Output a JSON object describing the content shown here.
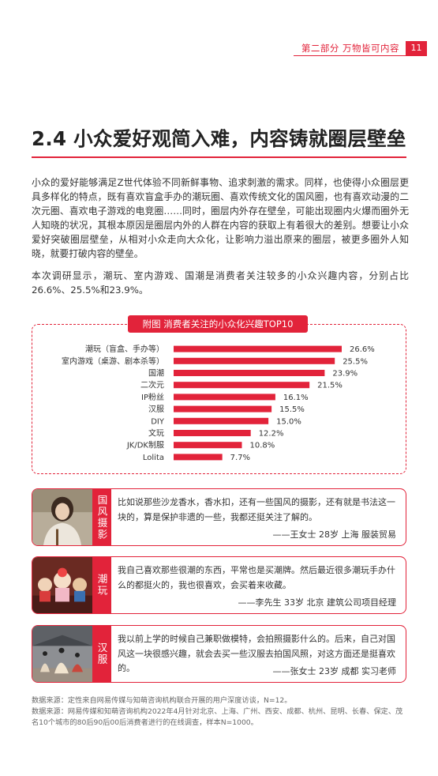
{
  "header": {
    "section": "第二部分  万物皆可内容",
    "page_number": "11"
  },
  "title": "2.4  小众爱好观简入难，内容铸就圈层壁垒",
  "paragraphs": [
    "小众的爱好能够满足Z世代体验不同新鲜事物、追求刺激的需求。同样，也使得小众圈层更具多样化的特点，既有喜欢盲盒手办的潮玩圈、喜欢传统文化的国风圈，也有喜欢动漫的二次元圈、喜欢电子游戏的电竞圈……同时，圈层内外存在壁垒，可能出现圈内火爆而圈外无人知晓的状况，其根本原因是圈层内外的人群在内容的获取上有着很大的差别。想要让小众爱好突破圈层壁垒，从相对小众走向大众化，让影响力溢出原来的圈层，被更多圈外人知晓，就要打破内容的壁垒。",
    "本次调研显示，潮玩、室内游戏、国潮是消费者关注较多的小众兴趣内容，分别占比26.6%、25.5%和23.9%。"
  ],
  "chart_title": "附图 消费者关注的小众化兴趣TOP10",
  "chart_data": {
    "type": "bar",
    "orientation": "horizontal",
    "title": "附图 消费者关注的小众化兴趣TOP10",
    "categories": [
      "潮玩（盲盒、手办等）",
      "室内游戏（桌游、剧本杀等）",
      "国潮",
      "二次元",
      "IP粉丝",
      "汉服",
      "DIY",
      "文玩",
      "JK/DK制服",
      "Lolita"
    ],
    "values": [
      26.6,
      25.5,
      23.9,
      21.5,
      16.1,
      15.5,
      15.0,
      12.2,
      10.8,
      7.7
    ],
    "value_labels": [
      "26.6%",
      "25.5%",
      "23.9%",
      "21.5%",
      "16.1%",
      "15.5%",
      "15.0%",
      "12.2%",
      "10.8%",
      "7.7%"
    ],
    "unit": "%",
    "color": "#e2233a",
    "grid": false,
    "legend": "none"
  },
  "quotes": [
    {
      "tag": "国风摄影",
      "text": "比如说那些沙龙香水，香水扣，还有一些国风的摄影，还有就是书法这一块的，算是保护非遗的一些，我都还挺关注了解的。",
      "attribution": "——王女士   28岁   上海   服装贸易",
      "photo_icon": "woman-portrait"
    },
    {
      "tag": "潮玩",
      "text": "我自己喜欢那些很潮的东西，平常也是买潮牌。然后最近很多潮玩手办什么的都挺火的，我也很喜欢，会买着来收藏。",
      "attribution": "——李先生   33岁   北京   建筑公司项目经理",
      "photo_icon": "figurines"
    },
    {
      "tag": "汉服",
      "text": "我以前上学的时候自己兼职做模特，会拍照摄影什么的。后来，自己对国风这一块很感兴趣，就会去买一些汉服去拍国风照，对这方面还是挺喜欢的。",
      "attribution": "——张女士   23岁   成都   实习老师",
      "photo_icon": "hanfu-dancers"
    }
  ],
  "sources": [
    "数据来源：定性来自网易传媒与知萌咨询机构联合开展的用户深度访谈，N=12。",
    "数据来源：网易传媒和知萌咨询机构2022年4月针对北京、上海、广州、西安、成都、杭州、昆明、长春、保定、茂名10个城市的80后90后00后消费者进行的在线调查，样本N=1000。"
  ],
  "colors": {
    "accent": "#e2233a",
    "text": "#333333"
  }
}
